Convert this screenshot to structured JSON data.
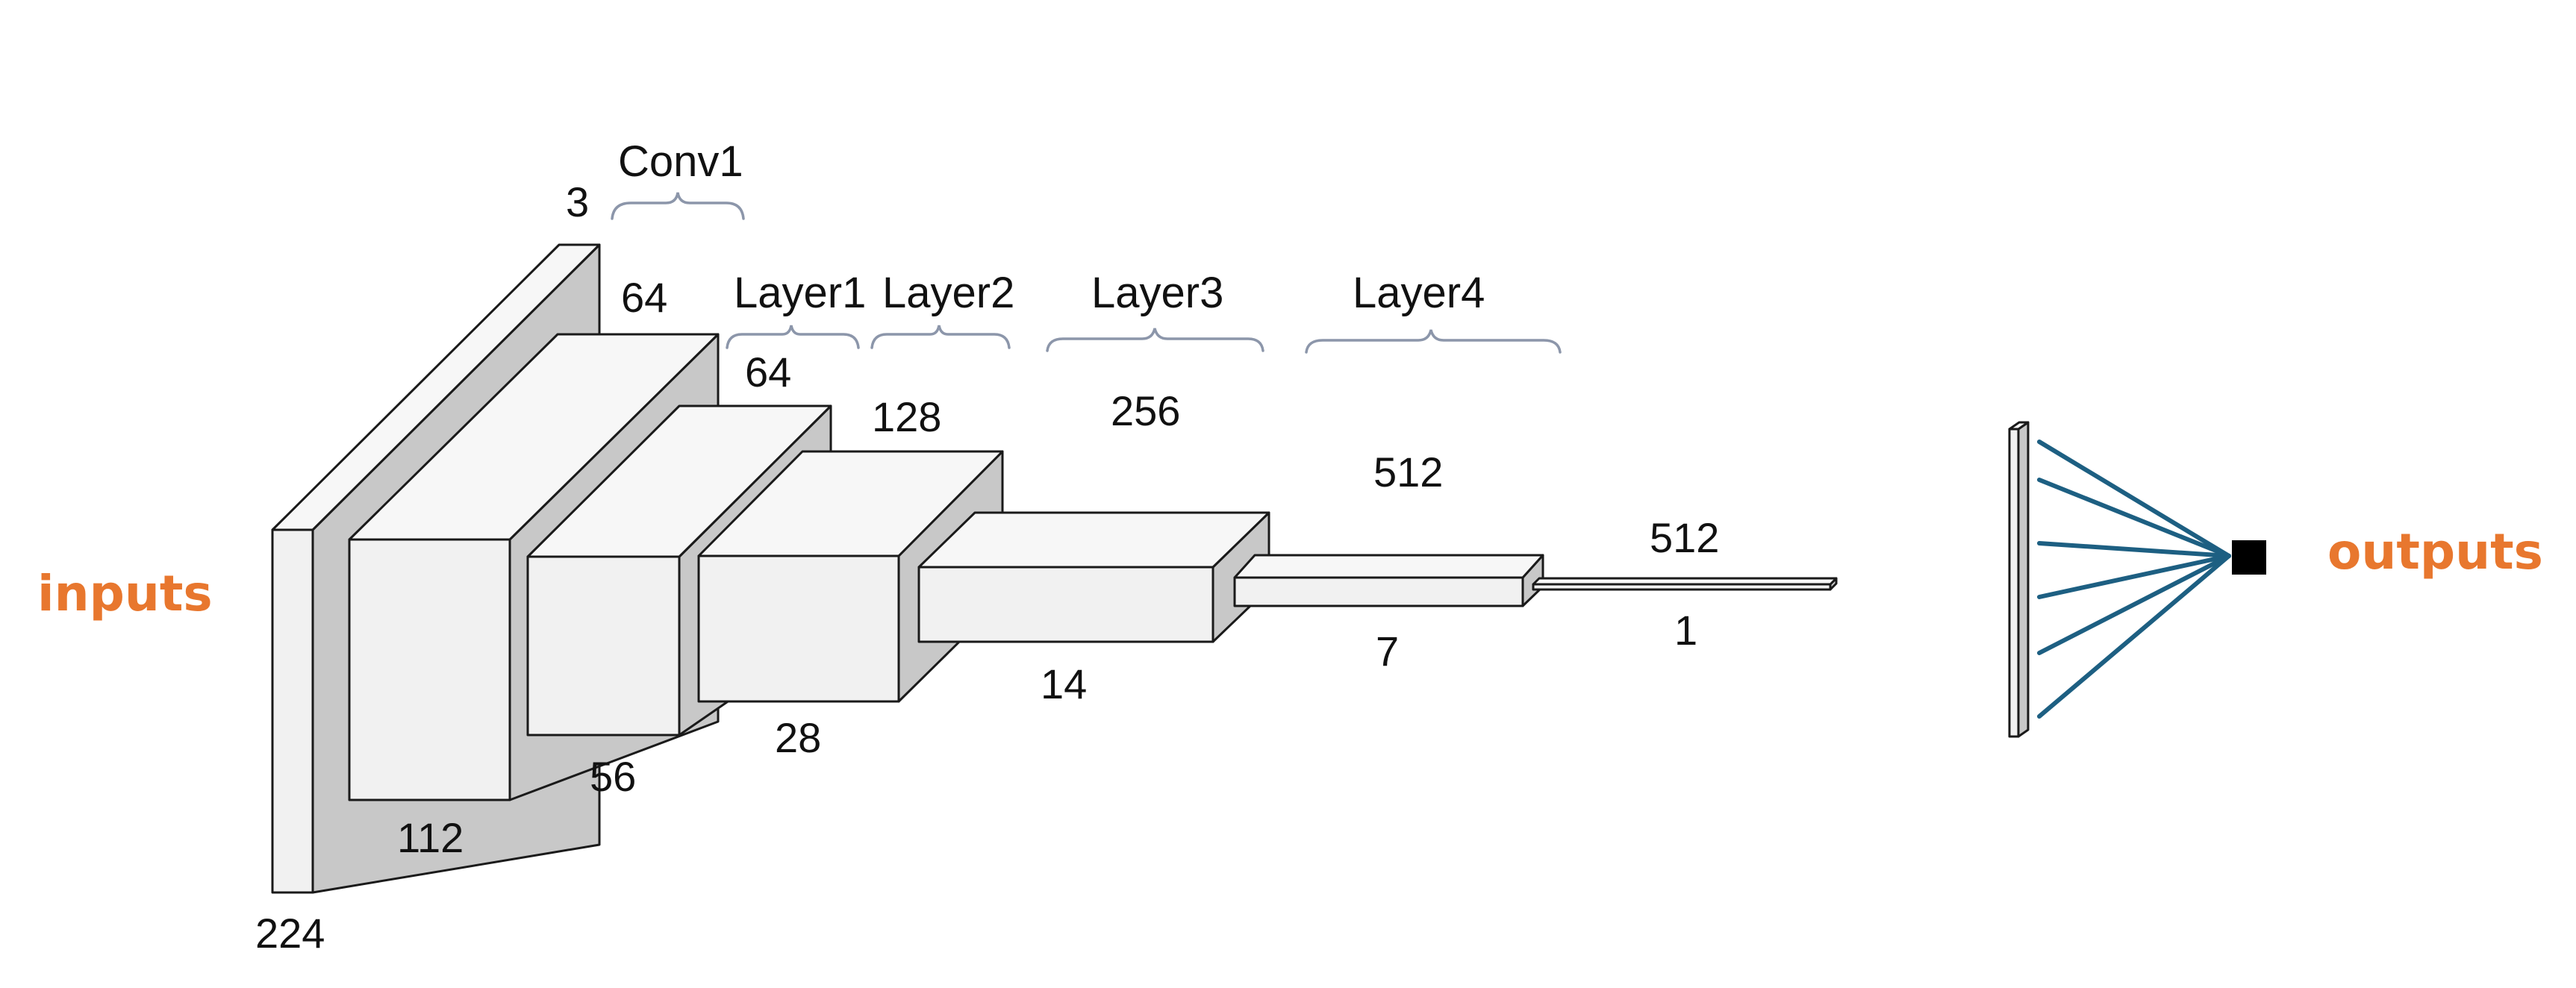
{
  "labels": {
    "inputs": "inputs",
    "outputs": "outputs"
  },
  "groups": {
    "conv1": "Conv1",
    "layer1": "Layer1",
    "layer2": "Layer2",
    "layer3": "Layer3",
    "layer4": "Layer4"
  },
  "dims": {
    "input_channels": "3",
    "input_size": "224",
    "conv1_channels": "64",
    "conv1_size": "112",
    "layer1_channels": "64",
    "layer1_size": "56",
    "layer2_channels": "128",
    "layer2_size": "28",
    "layer3_channels": "256",
    "layer3_size": "14",
    "layer4_channels": "512",
    "layer4_size": "7",
    "pool_channels": "512",
    "pool_size": "1"
  },
  "colors": {
    "io_label": "#e8772e",
    "connection": "#1d5f82",
    "output_node": "#000000"
  }
}
